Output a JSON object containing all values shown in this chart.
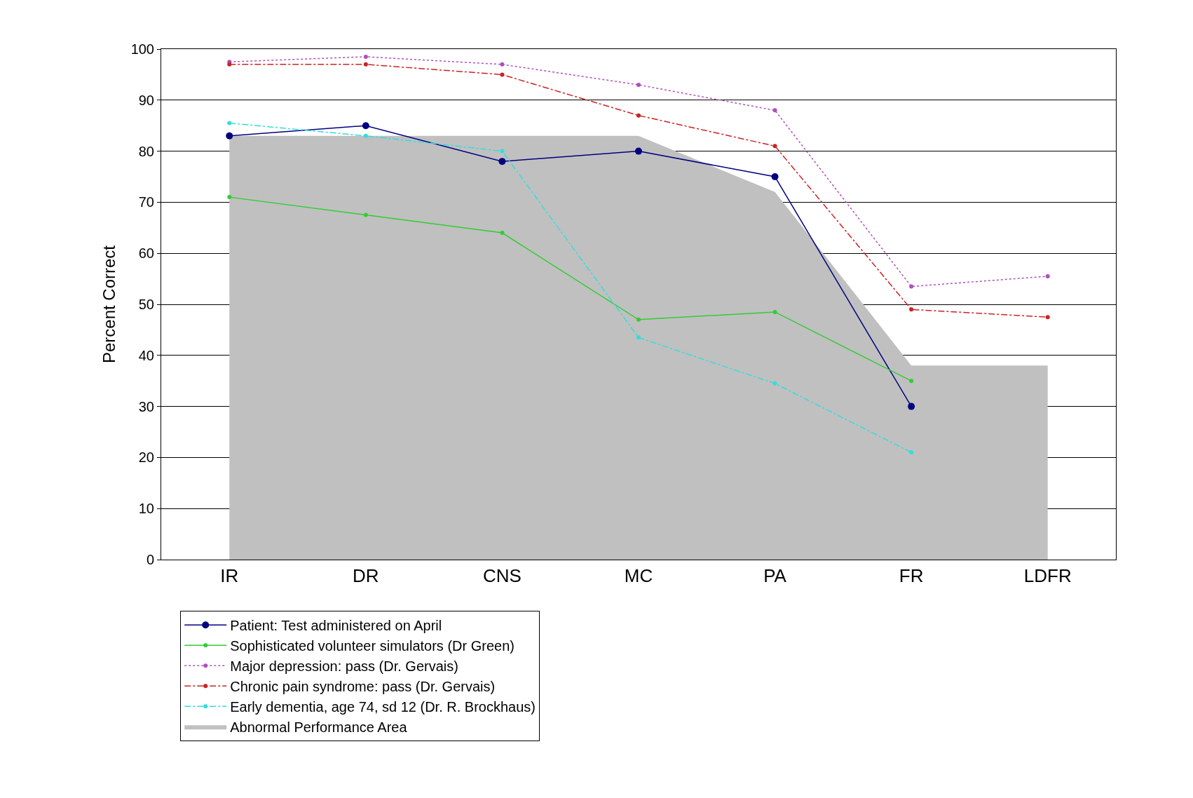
{
  "chart_data": {
    "type": "line",
    "ylabel": "Percent Correct",
    "categories": [
      "IR",
      "DR",
      "CNS",
      "MC",
      "PA",
      "FR",
      "LDFR"
    ],
    "ylim": [
      0,
      100
    ],
    "yticks": [
      0,
      10,
      20,
      30,
      40,
      50,
      60,
      70,
      80,
      90,
      100
    ],
    "grid": "y",
    "legend": "bottom",
    "series": [
      {
        "name": "Abnormal Performance Area",
        "type": "area",
        "color": "#c0c0c0",
        "values": [
          83,
          83,
          83,
          83,
          72,
          38,
          38
        ]
      },
      {
        "name": "Patient: Test administered on April",
        "color": "#000080",
        "marker": "circle",
        "line_style": "solid",
        "values": [
          83,
          85,
          78,
          80,
          75,
          30,
          null
        ]
      },
      {
        "name": "Sophisticated volunteer simulators (Dr Green)",
        "color": "#33cc33",
        "marker": "circle",
        "line_style": "solid",
        "values": [
          71,
          67.5,
          64,
          47,
          48.5,
          35,
          null
        ]
      },
      {
        "name": "Major depression: pass (Dr. Gervais)",
        "color": "#b04fc0",
        "marker": "circle",
        "line_style": "dotted",
        "values": [
          97.5,
          98.5,
          97,
          93,
          88,
          53.5,
          55.5
        ]
      },
      {
        "name": "Chronic pain syndrome: pass (Dr. Gervais)",
        "color": "#cc2222",
        "marker": "circle",
        "line_style": "dashed",
        "values": [
          97,
          97,
          95,
          87,
          81,
          49,
          47.5
        ]
      },
      {
        "name": "Early dementia, age 74, sd 12 (Dr. R. Brockhaus)",
        "color": "#33dddd",
        "marker": "circle",
        "line_style": "dashed",
        "values": [
          85.5,
          83,
          80,
          43.5,
          34.5,
          21,
          null
        ]
      }
    ]
  }
}
